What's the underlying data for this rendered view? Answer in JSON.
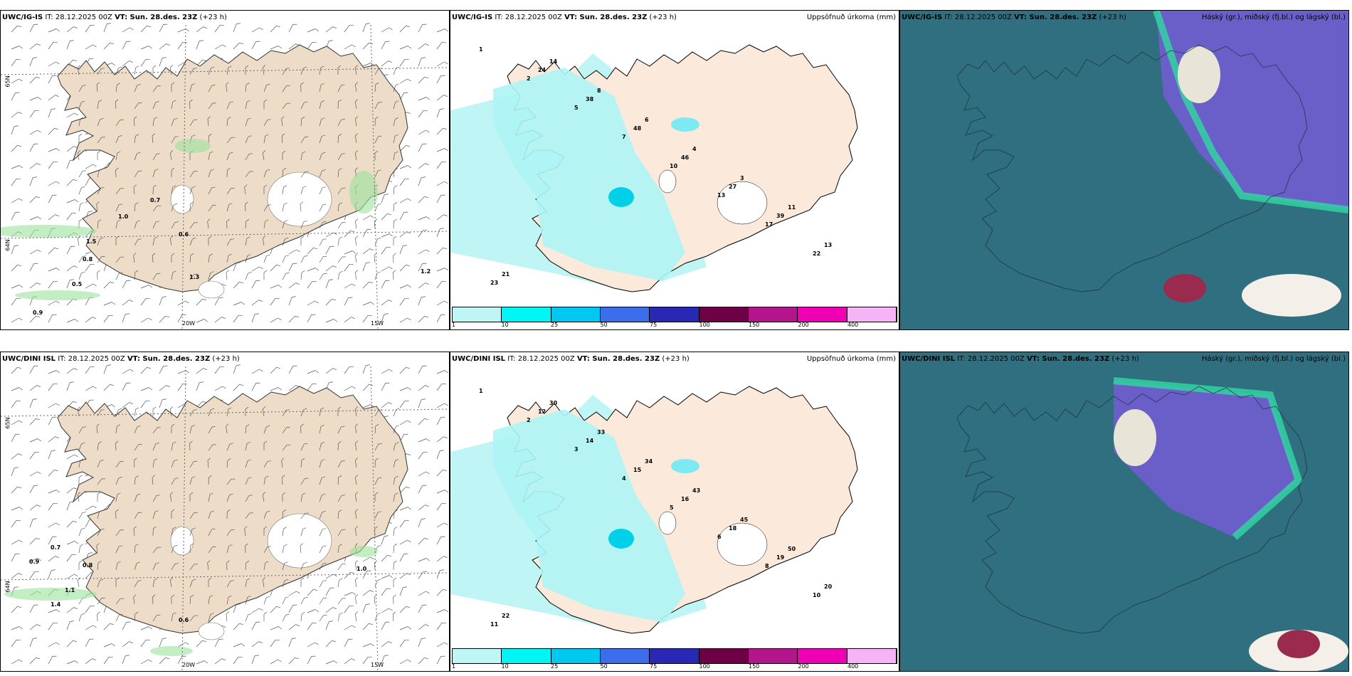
{
  "panels": [
    {
      "model": "UWC/IG-IS",
      "it": "IT: 28.12.2025 00Z",
      "vt": "VT: Sun. 28.des. 23Z",
      "lead": "(+23 h)",
      "title": ""
    },
    {
      "model": "UWC/IG-IS",
      "it": "IT: 28.12.2025 00Z",
      "vt": "VT: Sun. 28.des. 23Z",
      "lead": "(+23 h)",
      "title": "Uppsöfnuð úrkoma (mm)"
    },
    {
      "model": "UWC/IG-IS",
      "it": "IT: 28.12.2025 00Z",
      "vt": "VT: Sun. 28.des. 23Z",
      "lead": "(+23 h)",
      "title": "Háský (gr.), miðský (fj.bl.) og lágský (bl.)"
    },
    {
      "model": "UWC/DINI ISL",
      "it": "IT: 28.12.2025 00Z",
      "vt": "VT: Sun. 28.des. 23Z",
      "lead": "(+23 h)",
      "title": ""
    },
    {
      "model": "UWC/DINI ISL",
      "it": "IT: 28.12.2025 00Z",
      "vt": "VT: Sun. 28.des. 23Z",
      "lead": "(+23 h)",
      "title": "Uppsöfnuð úrkoma (mm)"
    },
    {
      "model": "UWC/DINI ISL",
      "it": "IT: 28.12.2025 00Z",
      "vt": "VT: Sun. 28.des. 23Z",
      "lead": "(+23 h)",
      "title": "Háský (gr.), miðský (fj.bl.) og lágský (bl.)"
    }
  ],
  "axis_labels": {
    "lon1": "20W",
    "lon2": "15W",
    "lat1": "65N",
    "lat2": "64N"
  },
  "colorbar": {
    "ticks": [
      "1",
      "10",
      "25",
      "50",
      "75",
      "100",
      "150",
      "200",
      "400"
    ],
    "colors": [
      "#bff5f5",
      "#00f5f5",
      "#00c8f0",
      "#3c6eeb",
      "#2828b4",
      "#6e0046",
      "#b4148c",
      "#f000b4",
      "#f5b4f5"
    ]
  },
  "precip_labels_top": [
    "1",
    "2",
    "5",
    "7",
    "10",
    "13",
    "17",
    "22",
    "23",
    "24",
    "38",
    "48",
    "46",
    "27",
    "39",
    "13",
    "21",
    "14",
    "8",
    "6",
    "4",
    "3",
    "11"
  ],
  "precip_labels_bottom": [
    "1",
    "2",
    "3",
    "4",
    "5",
    "6",
    "8",
    "10",
    "11",
    "12",
    "14",
    "15",
    "16",
    "18",
    "19",
    "20",
    "22",
    "30",
    "33",
    "34",
    "43",
    "45",
    "50"
  ],
  "wind_labels_top": [
    "0.7",
    "1.0",
    "0.6",
    "0.8",
    "0.5",
    "0.9",
    "1.5",
    "1.2",
    "1.3"
  ],
  "wind_labels_bottom": [
    "0.7",
    "0.9",
    "0.8",
    "0.6",
    "1.0",
    "1.4",
    "1.1"
  ]
}
